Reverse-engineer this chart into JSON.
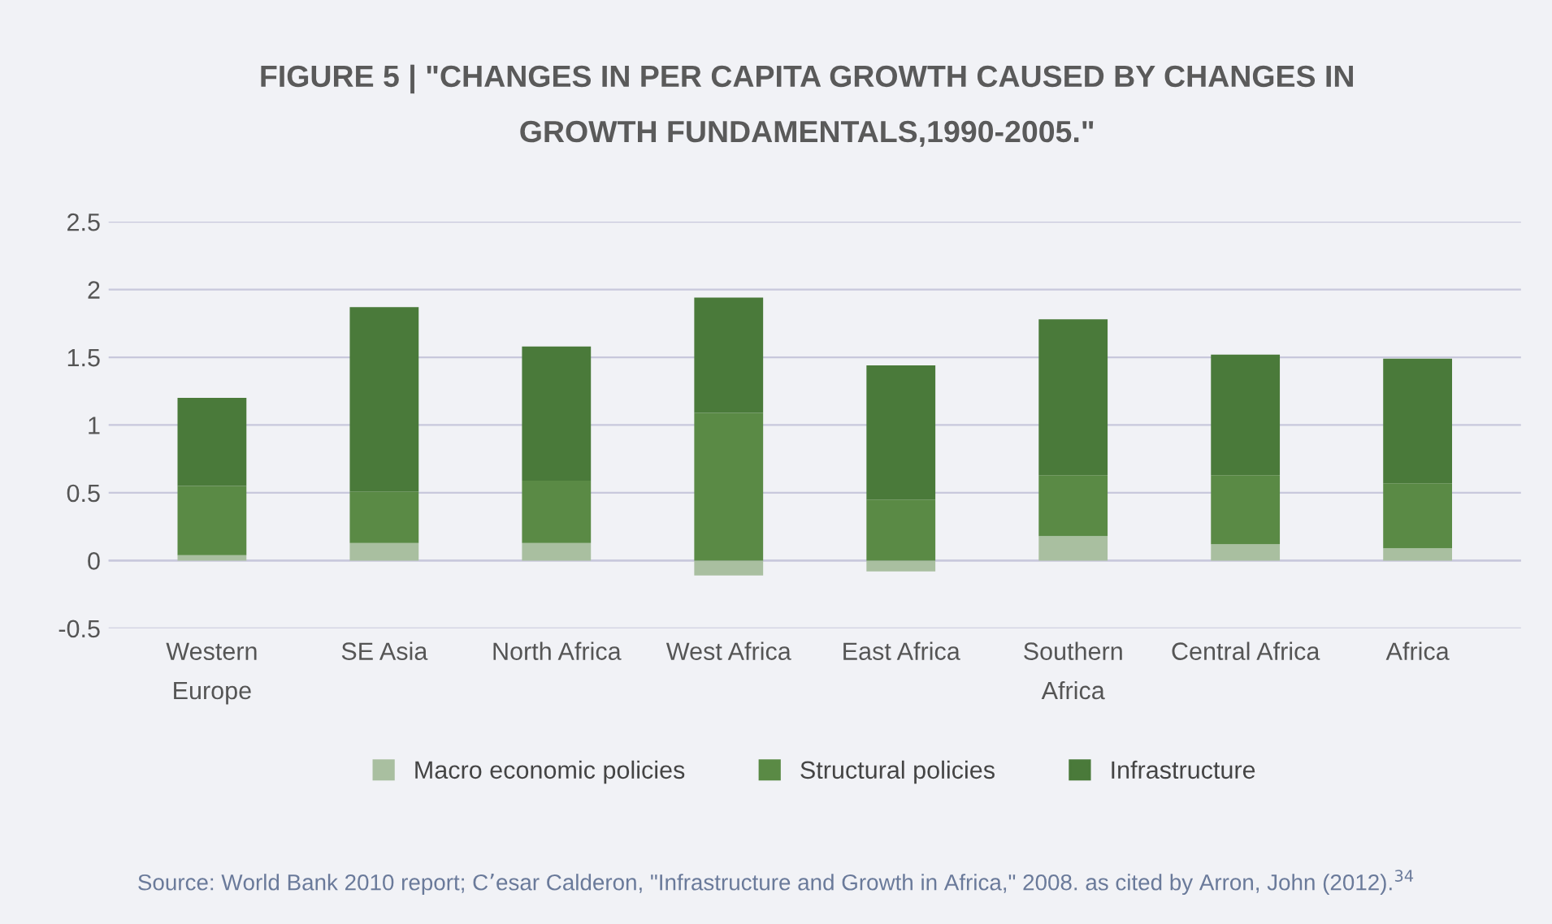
{
  "chart_data": {
    "type": "bar",
    "stacked": true,
    "title": "FIGURE 5 | \"CHANGES IN PER CAPITA GROWTH CAUSED BY CHANGES IN\nGROWTH FUNDAMENTALS,1990-2005.\"",
    "categories": [
      "Western\nEurope",
      "SE Asia",
      "North Africa",
      "West Africa",
      "East Africa",
      "Southern\nAfrica",
      "Central Africa",
      "Africa"
    ],
    "series": [
      {
        "name": "Macro economic policies",
        "color": "#a9bfa0",
        "values": [
          0.04,
          0.13,
          0.13,
          -0.11,
          -0.08,
          0.18,
          0.12,
          0.09
        ]
      },
      {
        "name": "Structural policies",
        "color": "#5a8a45",
        "values": [
          0.51,
          0.38,
          0.46,
          1.09,
          0.45,
          0.45,
          0.51,
          0.48
        ]
      },
      {
        "name": "Infrastructure",
        "color": "#4a7a3a",
        "values": [
          0.65,
          1.36,
          0.99,
          0.85,
          0.99,
          1.15,
          0.89,
          0.92
        ]
      }
    ],
    "ylim": [
      -0.5,
      2.5
    ],
    "yticks": [
      -0.5,
      0,
      0.5,
      1,
      1.5,
      2,
      2.5
    ],
    "grid": "y",
    "legend": "bottom",
    "annotations": [
      "Source: World Bank 2010 report; C’esar Calderon, \"Infrastructure and Growth in Africa,\" 2008. as cited by Arron, John (2012).$^{34}$"
    ]
  }
}
